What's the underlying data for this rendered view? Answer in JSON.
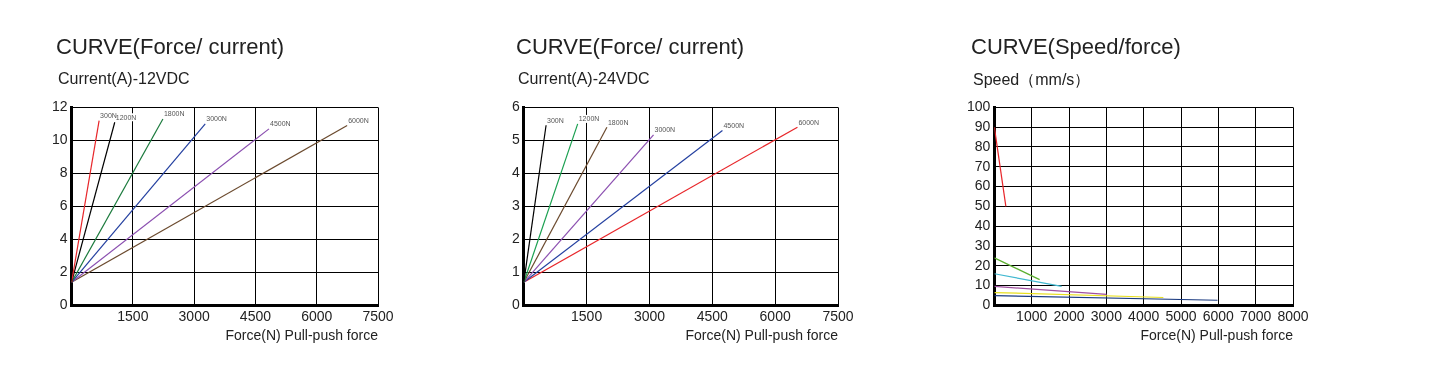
{
  "chart_data": [
    {
      "type": "line",
      "title": "CURVE(Force/ current)",
      "ylabel": "Current(A)-12VDC",
      "xlabel": "Force(N) Pull-push force",
      "xlim": [
        0,
        7500
      ],
      "ylim": [
        0,
        12
      ],
      "xticks": [
        1500,
        3000,
        4500,
        6000,
        7500
      ],
      "yticks": [
        0,
        2,
        4,
        6,
        8,
        10,
        12
      ],
      "grid": true,
      "series": [
        {
          "name": "300N",
          "color": "#e8262a",
          "x": [
            0,
            674
          ],
          "values": [
            1.4,
            11.2
          ]
        },
        {
          "name": "1200N",
          "color": "#000000",
          "x": [
            0,
            1057
          ],
          "values": [
            1.4,
            11.1
          ]
        },
        {
          "name": "1800N",
          "color": "#1a7a3c",
          "x": [
            0,
            2235
          ],
          "values": [
            1.4,
            11.3
          ]
        },
        {
          "name": "3000N",
          "color": "#2440a0",
          "x": [
            0,
            3272
          ],
          "values": [
            1.4,
            11
          ]
        },
        {
          "name": "4500N",
          "color": "#8b4fb0",
          "x": [
            0,
            4832
          ],
          "values": [
            1.4,
            10.7
          ]
        },
        {
          "name": "6000N",
          "color": "#6b4a2e",
          "x": [
            0,
            6745
          ],
          "values": [
            1.4,
            10.9
          ]
        }
      ]
    },
    {
      "type": "line",
      "title": "CURVE(Force/ current)",
      "ylabel": "Current(A)-24VDC",
      "xlabel": "Force(N) Pull-push force",
      "xlim": [
        0,
        7500
      ],
      "ylim": [
        0,
        6
      ],
      "xticks": [
        1500,
        3000,
        4500,
        6000,
        7500
      ],
      "yticks": [
        0,
        1,
        2,
        3,
        4,
        5,
        6
      ],
      "grid": true,
      "series": [
        {
          "name": "300N",
          "color": "#000000",
          "x": [
            0,
            532
          ],
          "values": [
            0.7,
            5.46
          ]
        },
        {
          "name": "1200N",
          "color": "#1aa050",
          "x": [
            0,
            1287
          ],
          "values": [
            0.7,
            5.5
          ]
        },
        {
          "name": "1800N",
          "color": "#6b4a2e",
          "x": [
            0,
            1984
          ],
          "values": [
            0.7,
            5.4
          ]
        },
        {
          "name": "3000N",
          "color": "#8b4fb0",
          "x": [
            0,
            3097
          ],
          "values": [
            0.7,
            5.17
          ]
        },
        {
          "name": "4500N",
          "color": "#2440a0",
          "x": [
            0,
            4742
          ],
          "values": [
            0.7,
            5.3
          ]
        },
        {
          "name": "6000N",
          "color": "#e8262a",
          "x": [
            0,
            6532
          ],
          "values": [
            0.7,
            5.4
          ]
        }
      ]
    },
    {
      "type": "line",
      "title": "CURVE(Speed/force)",
      "ylabel": "Speed（mm/s）",
      "xlabel": "Force(N) Pull-push force",
      "xlim": [
        0,
        8000
      ],
      "ylim": [
        0,
        100
      ],
      "xticks": [
        1000,
        2000,
        3000,
        4000,
        5000,
        6000,
        7000,
        8000
      ],
      "yticks": [
        0,
        10,
        20,
        30,
        40,
        50,
        60,
        70,
        80,
        90,
        100
      ],
      "grid": true,
      "series": [
        {
          "color": "#e8262a",
          "x": [
            0,
            308
          ],
          "values": [
            90,
            50
          ]
        },
        {
          "color": "#5cb030",
          "x": [
            0,
            1213
          ],
          "values": [
            24,
            13
          ]
        },
        {
          "color": "#40b8d0",
          "x": [
            0,
            1802
          ],
          "values": [
            16,
            9.6
          ]
        },
        {
          "color": "#a050a0",
          "x": [
            0,
            3006
          ],
          "values": [
            9.6,
            5.6
          ]
        },
        {
          "color": "#e8e020",
          "x": [
            0,
            4527
          ],
          "values": [
            6.5,
            4
          ]
        },
        {
          "color": "#1a3a80",
          "x": [
            0,
            5978
          ],
          "values": [
            4.9,
            2.6
          ]
        }
      ]
    }
  ]
}
